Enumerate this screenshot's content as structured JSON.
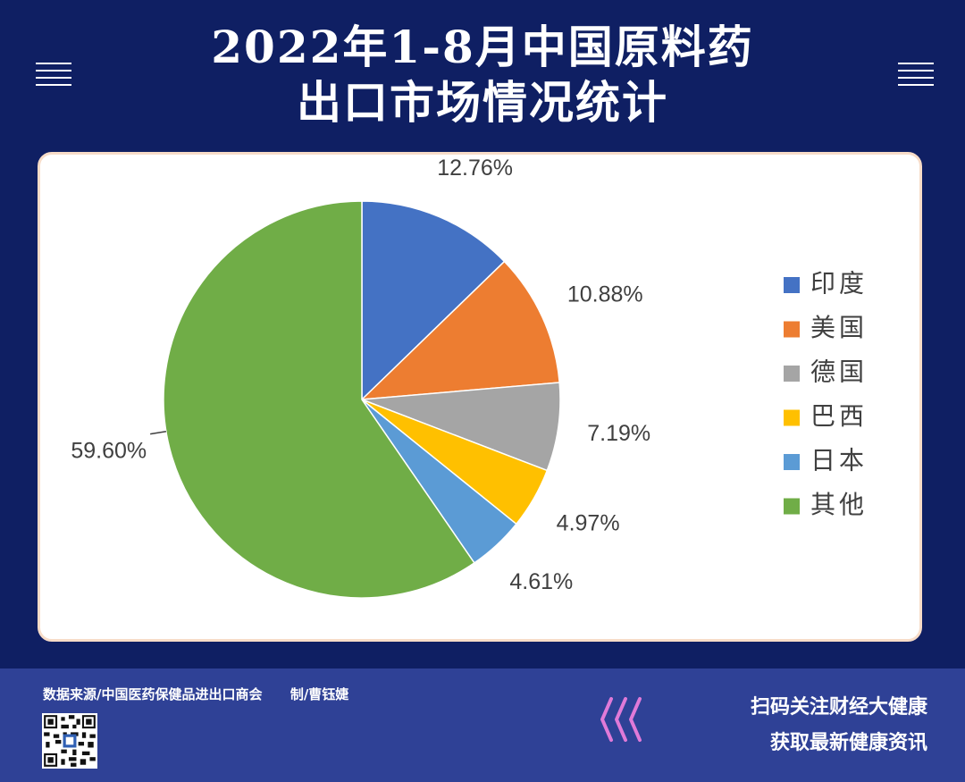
{
  "title": {
    "line1": "2022年1-8月中国原料药",
    "line2": "出口市场情况统计"
  },
  "icons": {
    "left_menu": "menu-icon",
    "right_menu": "menu-icon",
    "qr": "qr-code-icon",
    "chevrons": "chevron-left-triple-icon"
  },
  "chart_data": {
    "type": "pie",
    "title": "",
    "slices": [
      {
        "name": "印度",
        "value": 12.76,
        "label": "12.76%",
        "color": "#4472c4"
      },
      {
        "name": "美国",
        "value": 10.88,
        "label": "10.88%",
        "color": "#ed7d31"
      },
      {
        "name": "德国",
        "value": 7.19,
        "label": "7.19%",
        "color": "#a5a5a5"
      },
      {
        "name": "巴西",
        "value": 4.97,
        "label": "4.97%",
        "color": "#ffc000"
      },
      {
        "name": "日本",
        "value": 4.61,
        "label": "4.61%",
        "color": "#5b9bd5"
      },
      {
        "name": "其他",
        "value": 59.6,
        "label": "59.60%",
        "color": "#70ad47"
      }
    ],
    "start_angle": "12 o'clock, clockwise",
    "legend_position": "right"
  },
  "footer": {
    "source": "数据来源/中国医药保健品进出口商会      制/曹钰婕",
    "promo_line1": "扫码关注财经大健康",
    "promo_line2": "获取最新健康资讯"
  },
  "colors": {
    "background": "#0f1f63",
    "footer": "#2f4196",
    "card_border": "#f7dcc8",
    "chevron": "#e07ad8"
  }
}
